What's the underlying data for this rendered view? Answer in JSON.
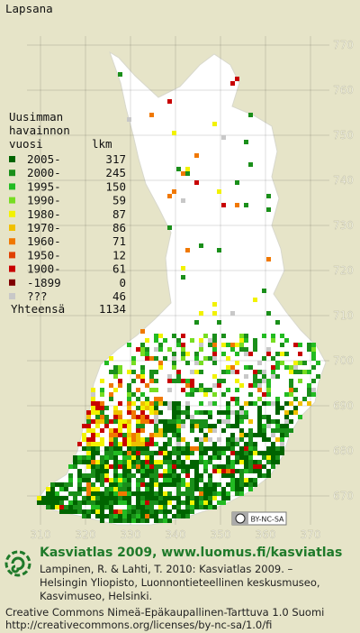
{
  "title": "Lapsana",
  "legend": {
    "heading": [
      "Uusimman",
      "havainnon",
      "vuosi"
    ],
    "count_heading": "lkm",
    "rows": [
      {
        "label": "2005-",
        "count": 317,
        "color": "#006400"
      },
      {
        "label": "2000-",
        "count": 245,
        "color": "#1a8f1a"
      },
      {
        "label": "1995-",
        "count": 150,
        "color": "#22bb22"
      },
      {
        "label": "1990-",
        "count": 59,
        "color": "#77dd22"
      },
      {
        "label": "1980-",
        "count": 87,
        "color": "#f2f200"
      },
      {
        "label": "1970-",
        "count": 86,
        "color": "#f0c000"
      },
      {
        "label": "1960-",
        "count": 71,
        "color": "#f07800"
      },
      {
        "label": "1950-",
        "count": 12,
        "color": "#e04000"
      },
      {
        "label": "1900-",
        "count": 61,
        "color": "#c80000"
      },
      {
        "label": "-1899",
        "count": 0,
        "color": "#800000"
      },
      {
        "label": "???",
        "count": 46,
        "color": "#c8c8c8"
      }
    ],
    "total": {
      "label": "Yhteensä",
      "value": 1134
    }
  },
  "map": {
    "xticks": [
      310,
      320,
      330,
      340,
      350,
      360,
      370
    ],
    "yticks": [
      670,
      680,
      690,
      700,
      710,
      720,
      730,
      740,
      750,
      760,
      770
    ],
    "license_badge": "BY-NC-SA"
  },
  "footer": {
    "heading": "Kasviatlas 2009, www.luomus.fi/kasviatlas",
    "citation": [
      "Lampinen, R. & Lahti, T. 2010: Kasviatlas 2009. –",
      "Helsingin Yliopisto, Luonnontieteellinen keskusmuseo,",
      "Kasvimuseo, Helsinki."
    ],
    "license": [
      "Creative Commons Nimeä-Epäkaupallinen-Tarttuva 1.0 Suomi",
      "http://creativecommons.org/licenses/by-nc-sa/1.0/fi"
    ]
  }
}
